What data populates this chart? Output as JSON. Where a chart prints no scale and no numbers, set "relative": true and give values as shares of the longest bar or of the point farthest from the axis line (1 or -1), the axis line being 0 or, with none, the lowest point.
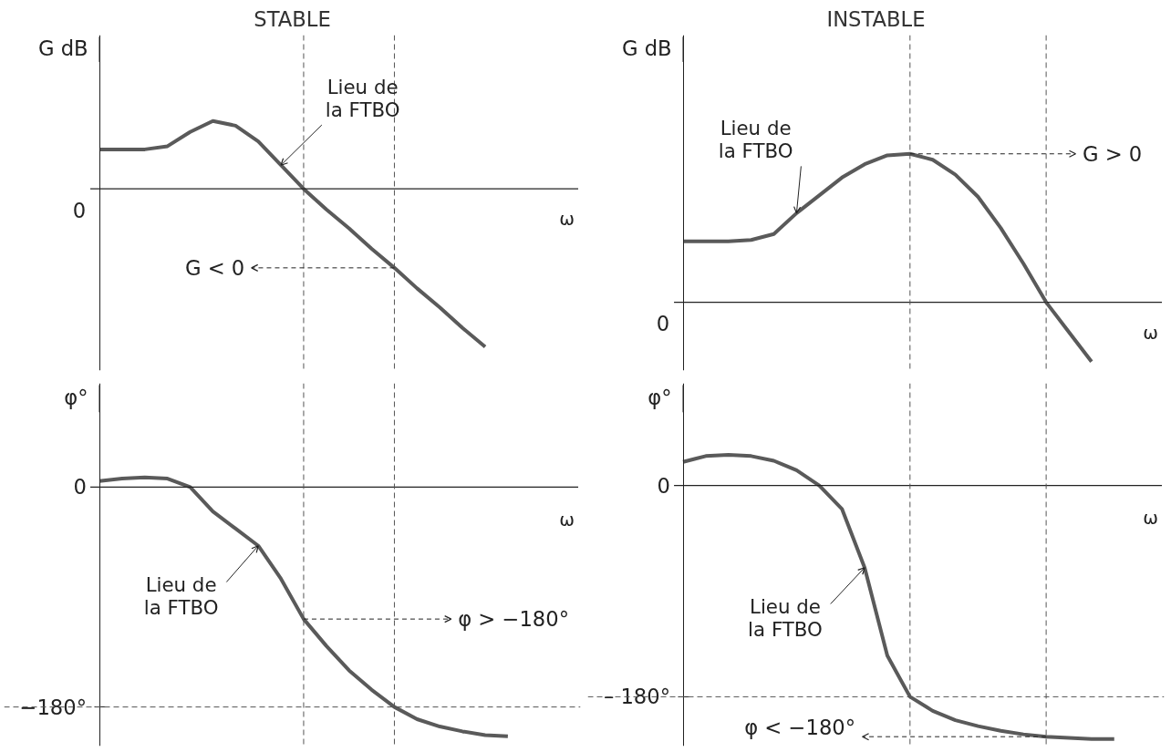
{
  "chart_data": [
    {
      "type": "line",
      "title": "STABLE",
      "relative": true,
      "xlabel": "ω",
      "ylabel": "G dB",
      "tick_labels": false,
      "categories": [
        null,
        null,
        null,
        null,
        null,
        null,
        null,
        null,
        null,
        null,
        null,
        null,
        null,
        null,
        null,
        null,
        null,
        null,
        null,
        null,
        null
      ],
      "series": [
        {
          "color": "#5a5a5a",
          "values": [
            0.25,
            0.25,
            0.25,
            0.27,
            0.36,
            0.43,
            0.4,
            0.3,
            0.15,
            0,
            -0.13,
            -0.25,
            -0.38,
            -0.5,
            -0.63,
            -0.75,
            -0.88,
            -1,
            null,
            null,
            null
          ]
        }
      ],
      "annotations": [
        "Lieu de\nla FTBO",
        "G < 0",
        "0"
      ]
    },
    {
      "type": "line",
      "title": "INSTABLE",
      "relative": true,
      "xlabel": "ω",
      "ylabel": "G dB",
      "tick_labels": false,
      "categories": [
        null,
        null,
        null,
        null,
        null,
        null,
        null,
        null,
        null,
        null,
        null,
        null,
        null,
        null,
        null,
        null,
        null,
        null,
        null,
        null,
        null
      ],
      "series": [
        {
          "color": "#5a5a5a",
          "values": [
            0.41,
            0.41,
            0.41,
            0.42,
            0.46,
            0.6,
            0.72,
            0.84,
            0.93,
            0.99,
            1,
            0.96,
            0.86,
            0.71,
            0.5,
            0.26,
            0,
            -0.2,
            -0.4,
            null,
            null
          ]
        }
      ],
      "annotations": [
        "Lieu de\nla FTBO",
        "G > 0",
        "0"
      ]
    },
    {
      "type": "line",
      "xlabel": "ω",
      "ylabel": "φ°",
      "ylim": [
        -212,
        85
      ],
      "yticks": [
        0,
        {
          "value": -180,
          "label": "−180°"
        }
      ],
      "tick_labels": "y",
      "categories": [
        null,
        null,
        null,
        null,
        null,
        null,
        null,
        null,
        null,
        null,
        null,
        null,
        null,
        null,
        null,
        null,
        null,
        null,
        null,
        null,
        null
      ],
      "series": [
        {
          "color": "#5a5a5a",
          "values": [
            5,
            7,
            8,
            7,
            0,
            -20,
            -34,
            -48,
            -75,
            -108,
            -130,
            -150,
            -166,
            -180,
            -190,
            -196,
            -200,
            -203,
            -204,
            null,
            null
          ]
        }
      ],
      "ref_lines": [
        {
          "axis": "y",
          "value": -180,
          "line_style": "dashed"
        }
      ],
      "annotations": [
        "Lieu de\nla FTBO",
        "φ > −180°"
      ]
    },
    {
      "type": "line",
      "xlabel": "ω",
      "ylabel": "φ°",
      "ylim": [
        -222,
        87
      ],
      "yticks": [
        0,
        {
          "value": -180,
          "label": "– 180°"
        }
      ],
      "tick_labels": "y",
      "categories": [
        null,
        null,
        null,
        null,
        null,
        null,
        null,
        null,
        null,
        null,
        null,
        null,
        null,
        null,
        null,
        null,
        null,
        null,
        null,
        null,
        null
      ],
      "series": [
        {
          "color": "#5a5a5a",
          "values": [
            20,
            25,
            26,
            25,
            21,
            13,
            0,
            -20,
            -70,
            -145,
            -180,
            -192,
            -200,
            -205,
            -209,
            -212,
            -214,
            -215,
            -216,
            -216,
            null
          ]
        }
      ],
      "ref_lines": [
        {
          "axis": "y",
          "value": -180,
          "line_style": "dashed"
        }
      ],
      "annotations": [
        "Lieu de\nla FTBO",
        "φ < −180°"
      ]
    }
  ]
}
